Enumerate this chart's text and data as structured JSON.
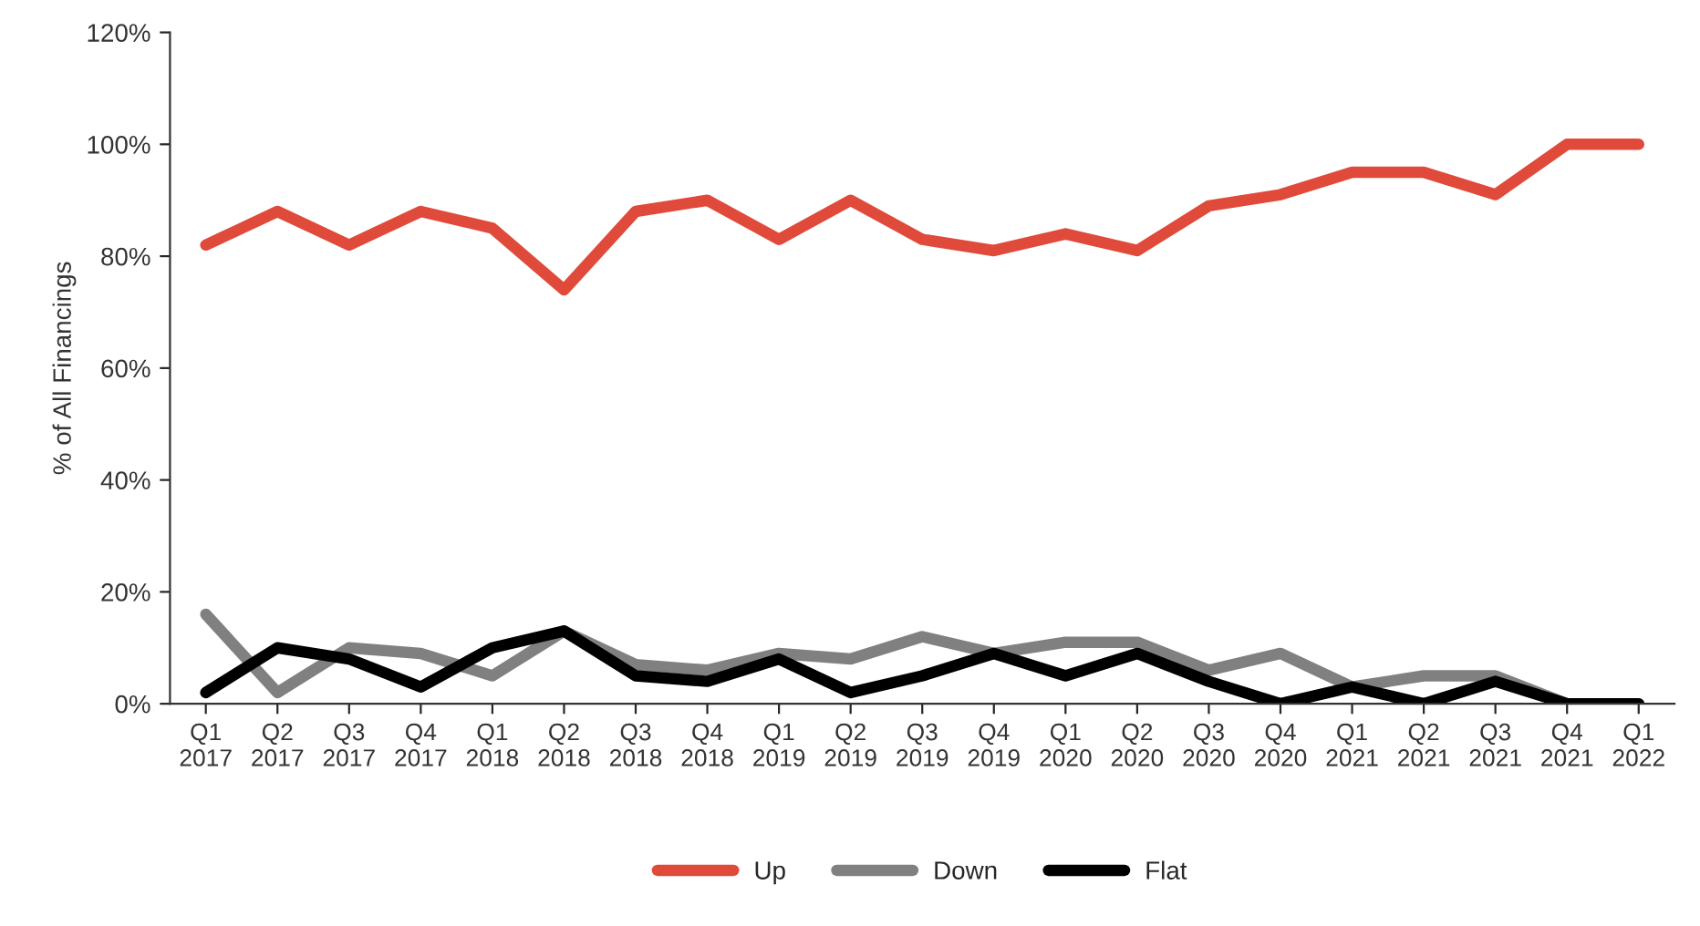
{
  "chart_data": {
    "type": "line",
    "ylabel": "% of All Financings",
    "categories": [
      "Q1\n2017",
      "Q2\n2017",
      "Q3\n2017",
      "Q4\n2017",
      "Q1\n2018",
      "Q2\n2018",
      "Q3\n2018",
      "Q4\n2018",
      "Q1\n2019",
      "Q2\n2019",
      "Q3\n2019",
      "Q4\n2019",
      "Q1\n2020",
      "Q2\n2020",
      "Q3\n2020",
      "Q4\n2020",
      "Q1\n2021",
      "Q2\n2021",
      "Q3\n2021",
      "Q4\n2021",
      "Q1\n2022"
    ],
    "series": [
      {
        "name": "Up",
        "color": "#e04a3b",
        "values": [
          82,
          88,
          82,
          88,
          85,
          74,
          88,
          90,
          83,
          90,
          83,
          81,
          84,
          81,
          89,
          91,
          95,
          95,
          91,
          100,
          100
        ]
      },
      {
        "name": "Down",
        "color": "#808080",
        "values": [
          16,
          2,
          10,
          9,
          5,
          13,
          7,
          6,
          9,
          8,
          12,
          9,
          11,
          11,
          6,
          9,
          3,
          5,
          5,
          0,
          0
        ]
      },
      {
        "name": "Flat",
        "color": "#000000",
        "values": [
          2,
          10,
          8,
          3,
          10,
          13,
          5,
          4,
          8,
          2,
          5,
          9,
          5,
          9,
          4,
          0,
          3,
          0,
          4,
          0,
          0
        ]
      }
    ],
    "ylim": [
      0,
      120
    ],
    "yticks": [
      {
        "value": 0,
        "label": "0%"
      },
      {
        "value": 20,
        "label": "20%"
      },
      {
        "value": 40,
        "label": "40%"
      },
      {
        "value": 60,
        "label": "60%"
      },
      {
        "value": 80,
        "label": "80%"
      },
      {
        "value": 100,
        "label": "100%"
      },
      {
        "value": 120,
        "label": "120%"
      }
    ],
    "grid": false,
    "legend": "bottom",
    "line_style": "solid",
    "marker": "none"
  }
}
